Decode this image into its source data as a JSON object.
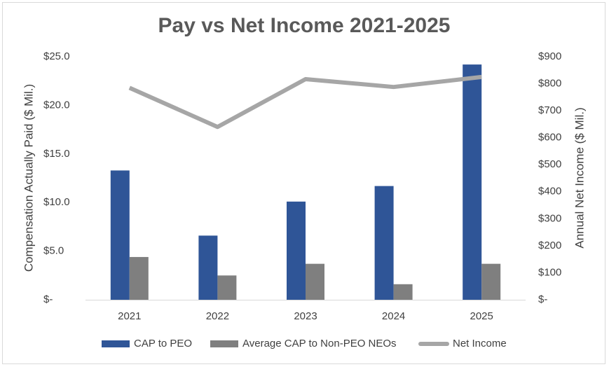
{
  "chart_data": {
    "type": "bar",
    "title": "Pay vs Net Income 2021-2025",
    "y_label": "Compensation Actually Paid ($ Mil.)",
    "y2_label": "Annual Net Income ($ Mil.)",
    "categories": [
      "2021",
      "2022",
      "2023",
      "2024",
      "2025"
    ],
    "series": [
      {
        "name": "CAP to PEO",
        "color": "#2f5597",
        "type": "bar",
        "values": [
          13.3,
          6.6,
          10.1,
          11.7,
          24.2
        ]
      },
      {
        "name": "Average CAP to Non-PEO NEOs",
        "color": "#7f7f7f",
        "type": "bar",
        "values": [
          4.4,
          2.5,
          3.7,
          1.6,
          3.7
        ]
      },
      {
        "name": "Net Income",
        "color": "#a6a6a6",
        "type": "line",
        "axis": "y2",
        "values": [
          785,
          640,
          817,
          788,
          825
        ]
      }
    ],
    "ylim": [
      0,
      25
    ],
    "yticks": [
      {
        "value": 0,
        "label": "$-"
      },
      {
        "value": 5,
        "label": "$5.0"
      },
      {
        "value": 10,
        "label": "$10.0"
      },
      {
        "value": 15,
        "label": "$15.0"
      },
      {
        "value": 20,
        "label": "$20.0"
      },
      {
        "value": 25,
        "label": "$25.0"
      }
    ],
    "y2lim": [
      0,
      900
    ],
    "y2ticks": [
      {
        "value": 0,
        "label": "$-"
      },
      {
        "value": 100,
        "label": "$100"
      },
      {
        "value": 200,
        "label": "$200"
      },
      {
        "value": 300,
        "label": "$300"
      },
      {
        "value": 400,
        "label": "$400"
      },
      {
        "value": 500,
        "label": "$500"
      },
      {
        "value": 600,
        "label": "$600"
      },
      {
        "value": 700,
        "label": "$700"
      },
      {
        "value": 800,
        "label": "$800"
      },
      {
        "value": 900,
        "label": "$900"
      }
    ],
    "grid": false,
    "legend": "bottom"
  }
}
